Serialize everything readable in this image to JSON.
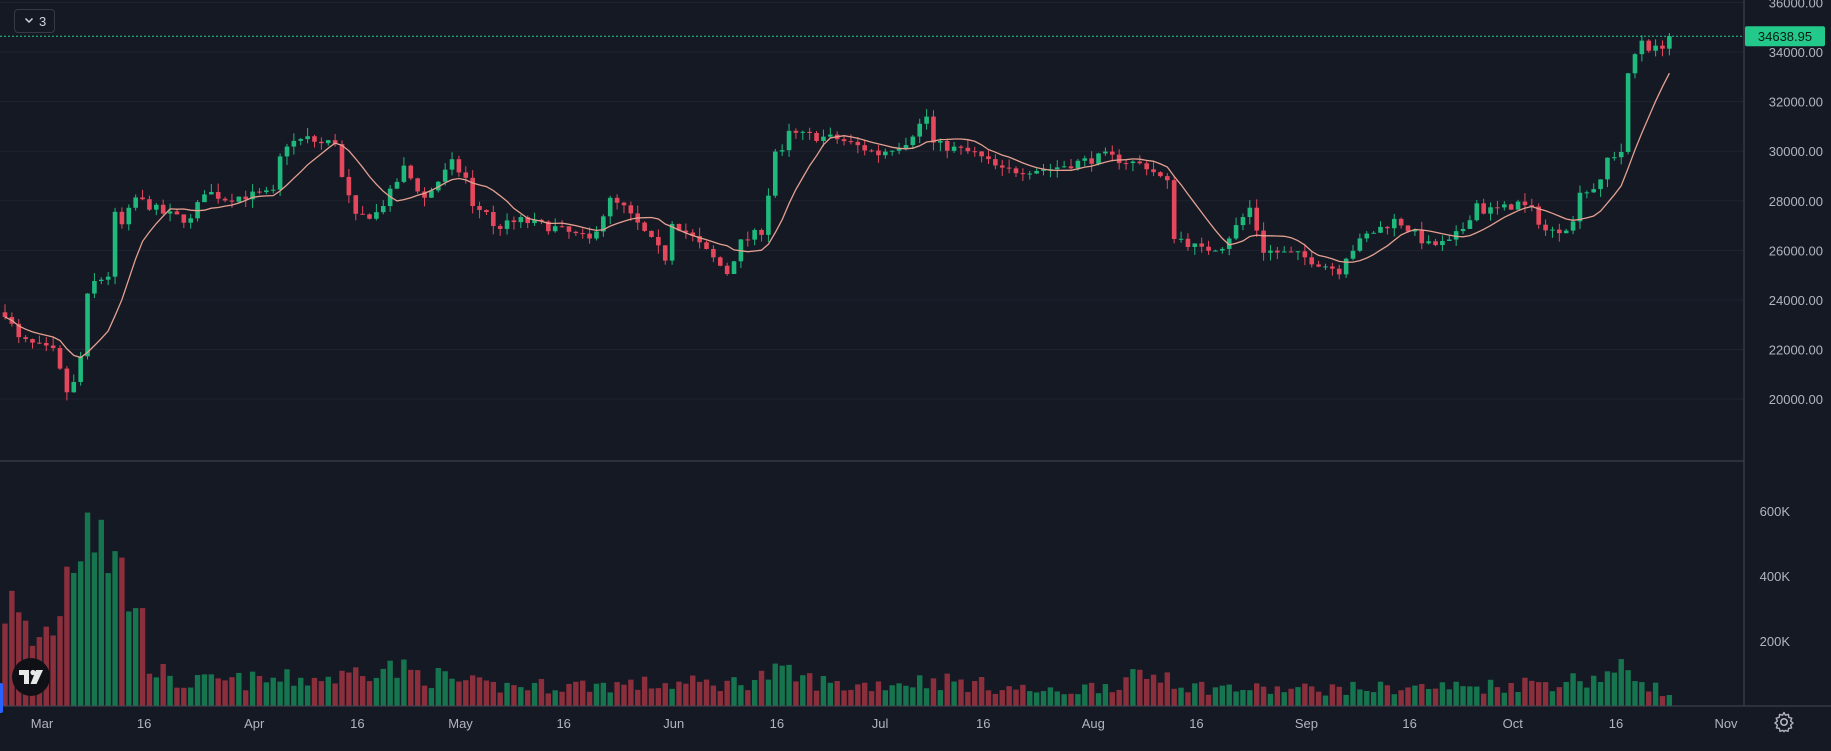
{
  "indicator_toggle": {
    "count_label": "3",
    "icon": "chevron-down-icon"
  },
  "last_price_label": "34638.95",
  "colors": {
    "up": "#1fb87d",
    "down": "#e5485d",
    "up_volume": "#16744f",
    "down_volume": "#8a2f3b",
    "ma": "#e3a090",
    "background": "#151924",
    "grid": "#1f2330",
    "text": "#b2b5be",
    "price_line": "#22c98a"
  },
  "logo_icon": "tradingview-logo-icon",
  "settings_icon": "gear-icon",
  "chart_data": {
    "type": "candlestick",
    "title": "",
    "x_tick_labels": [
      "Mar",
      "16",
      "Apr",
      "16",
      "May",
      "16",
      "Jun",
      "16",
      "Jul",
      "16",
      "Aug",
      "16",
      "Sep",
      "16",
      "Oct",
      "16",
      "Nov"
    ],
    "price_axis": {
      "ticks": [
        "36000.00",
        "34000.00",
        "32000.00",
        "30000.00",
        "28000.00",
        "26000.00",
        "24000.00",
        "22000.00",
        "20000.00"
      ],
      "range": [
        17500,
        36100
      ]
    },
    "volume_axis": {
      "ticks": [
        "600K",
        "400K",
        "200K"
      ],
      "range": [
        0,
        720000
      ]
    },
    "moving_average_period": 9,
    "date_range": [
      "2023-03-01",
      "2023-10-26"
    ],
    "close_anchors": [
      [
        "2023-03-01",
        23500
      ],
      [
        "2023-03-03",
        22400
      ],
      [
        "2023-03-08",
        21900
      ],
      [
        "2023-03-10",
        20300
      ],
      [
        "2023-03-11",
        20600
      ],
      [
        "2023-03-12",
        21700
      ],
      [
        "2023-03-13",
        24100
      ],
      [
        "2023-03-14",
        24700
      ],
      [
        "2023-03-16",
        25000
      ],
      [
        "2023-03-17",
        27400
      ],
      [
        "2023-03-18",
        27000
      ],
      [
        "2023-03-20",
        28100
      ],
      [
        "2023-03-24",
        27500
      ],
      [
        "2023-03-28",
        27200
      ],
      [
        "2023-03-30",
        28400
      ],
      [
        "2023-04-02",
        28100
      ],
      [
        "2023-04-05",
        28200
      ],
      [
        "2023-04-09",
        28300
      ],
      [
        "2023-04-10",
        29700
      ],
      [
        "2023-04-11",
        30300
      ],
      [
        "2023-04-14",
        30500
      ],
      [
        "2023-04-16",
        30300
      ],
      [
        "2023-04-18",
        30400
      ],
      [
        "2023-04-19",
        28900
      ],
      [
        "2023-04-21",
        27300
      ],
      [
        "2023-04-24",
        27500
      ],
      [
        "2023-04-26",
        28300
      ],
      [
        "2023-04-28",
        29300
      ],
      [
        "2023-05-01",
        28100
      ],
      [
        "2023-05-05",
        29500
      ],
      [
        "2023-05-07",
        28900
      ],
      [
        "2023-05-08",
        27700
      ],
      [
        "2023-05-10",
        27600
      ],
      [
        "2023-05-11",
        26900
      ],
      [
        "2023-05-15",
        27200
      ],
      [
        "2023-05-20",
        26900
      ],
      [
        "2023-05-25",
        26400
      ],
      [
        "2023-05-28",
        28000
      ],
      [
        "2023-05-30",
        27700
      ],
      [
        "2023-06-05",
        25700
      ],
      [
        "2023-06-06",
        27200
      ],
      [
        "2023-06-09",
        26500
      ],
      [
        "2023-06-14",
        25100
      ],
      [
        "2023-06-16",
        26300
      ],
      [
        "2023-06-19",
        26800
      ],
      [
        "2023-06-20",
        28300
      ],
      [
        "2023-06-21",
        30000
      ],
      [
        "2023-06-22",
        29900
      ],
      [
        "2023-06-23",
        30700
      ],
      [
        "2023-06-30",
        30500
      ],
      [
        "2023-07-06",
        29900
      ],
      [
        "2023-07-10",
        30400
      ],
      [
        "2023-07-13",
        31400
      ],
      [
        "2023-07-14",
        30300
      ],
      [
        "2023-07-20",
        29900
      ],
      [
        "2023-07-24",
        29200
      ],
      [
        "2023-07-31",
        29300
      ],
      [
        "2023-08-08",
        29800
      ],
      [
        "2023-08-14",
        29400
      ],
      [
        "2023-08-17",
        28700
      ],
      [
        "2023-08-18",
        26600
      ],
      [
        "2023-08-22",
        26000
      ],
      [
        "2023-08-25",
        26200
      ],
      [
        "2023-08-29",
        27700
      ],
      [
        "2023-08-31",
        26000
      ],
      [
        "2023-09-05",
        25800
      ],
      [
        "2023-09-11",
        25200
      ],
      [
        "2023-09-12",
        25800
      ],
      [
        "2023-09-15",
        26600
      ],
      [
        "2023-09-19",
        27200
      ],
      [
        "2023-09-20",
        27100
      ],
      [
        "2023-09-24",
        26200
      ],
      [
        "2023-09-27",
        26300
      ],
      [
        "2023-09-29",
        26900
      ],
      [
        "2023-10-01",
        27900
      ],
      [
        "2023-10-02",
        27600
      ],
      [
        "2023-10-05",
        27700
      ],
      [
        "2023-10-07",
        27900
      ],
      [
        "2023-10-09",
        27600
      ],
      [
        "2023-10-11",
        26800
      ],
      [
        "2023-10-12",
        26750
      ],
      [
        "2023-10-15",
        27100
      ],
      [
        "2023-10-16",
        28500
      ],
      [
        "2023-10-17",
        28400
      ],
      [
        "2023-10-19",
        28700
      ],
      [
        "2023-10-20",
        29700
      ],
      [
        "2023-10-22",
        30000
      ],
      [
        "2023-10-23",
        33000
      ],
      [
        "2023-10-24",
        33900
      ],
      [
        "2023-10-25",
        34500
      ],
      [
        "2023-10-26",
        34200
      ],
      [
        "2023-10-27",
        34100
      ],
      [
        "2023-10-28",
        34300
      ],
      [
        "2023-10-29",
        34638.95
      ]
    ],
    "volume_anchors": [
      [
        "2023-03-01",
        330000
      ],
      [
        "2023-03-05",
        190000
      ],
      [
        "2023-03-08",
        250000
      ],
      [
        "2023-03-10",
        410000
      ],
      [
        "2023-03-13",
        680000
      ],
      [
        "2023-03-15",
        610000
      ],
      [
        "2023-03-17",
        430000
      ],
      [
        "2023-03-20",
        330000
      ],
      [
        "2023-03-22",
        150000
      ],
      [
        "2023-03-25",
        70000
      ],
      [
        "2023-04-10",
        80000
      ],
      [
        "2023-04-20",
        90000
      ],
      [
        "2023-04-22",
        130000
      ],
      [
        "2023-05-10",
        60000
      ],
      [
        "2023-06-15",
        70000
      ],
      [
        "2023-06-21",
        100000
      ],
      [
        "2023-07-01",
        60000
      ],
      [
        "2023-07-14",
        80000
      ],
      [
        "2023-08-01",
        40000
      ],
      [
        "2023-08-17",
        100000
      ],
      [
        "2023-08-20",
        60000
      ],
      [
        "2023-09-01",
        50000
      ],
      [
        "2023-10-01",
        60000
      ],
      [
        "2023-10-16",
        80000
      ],
      [
        "2023-10-23",
        110000
      ],
      [
        "2023-10-29",
        30000
      ]
    ]
  }
}
